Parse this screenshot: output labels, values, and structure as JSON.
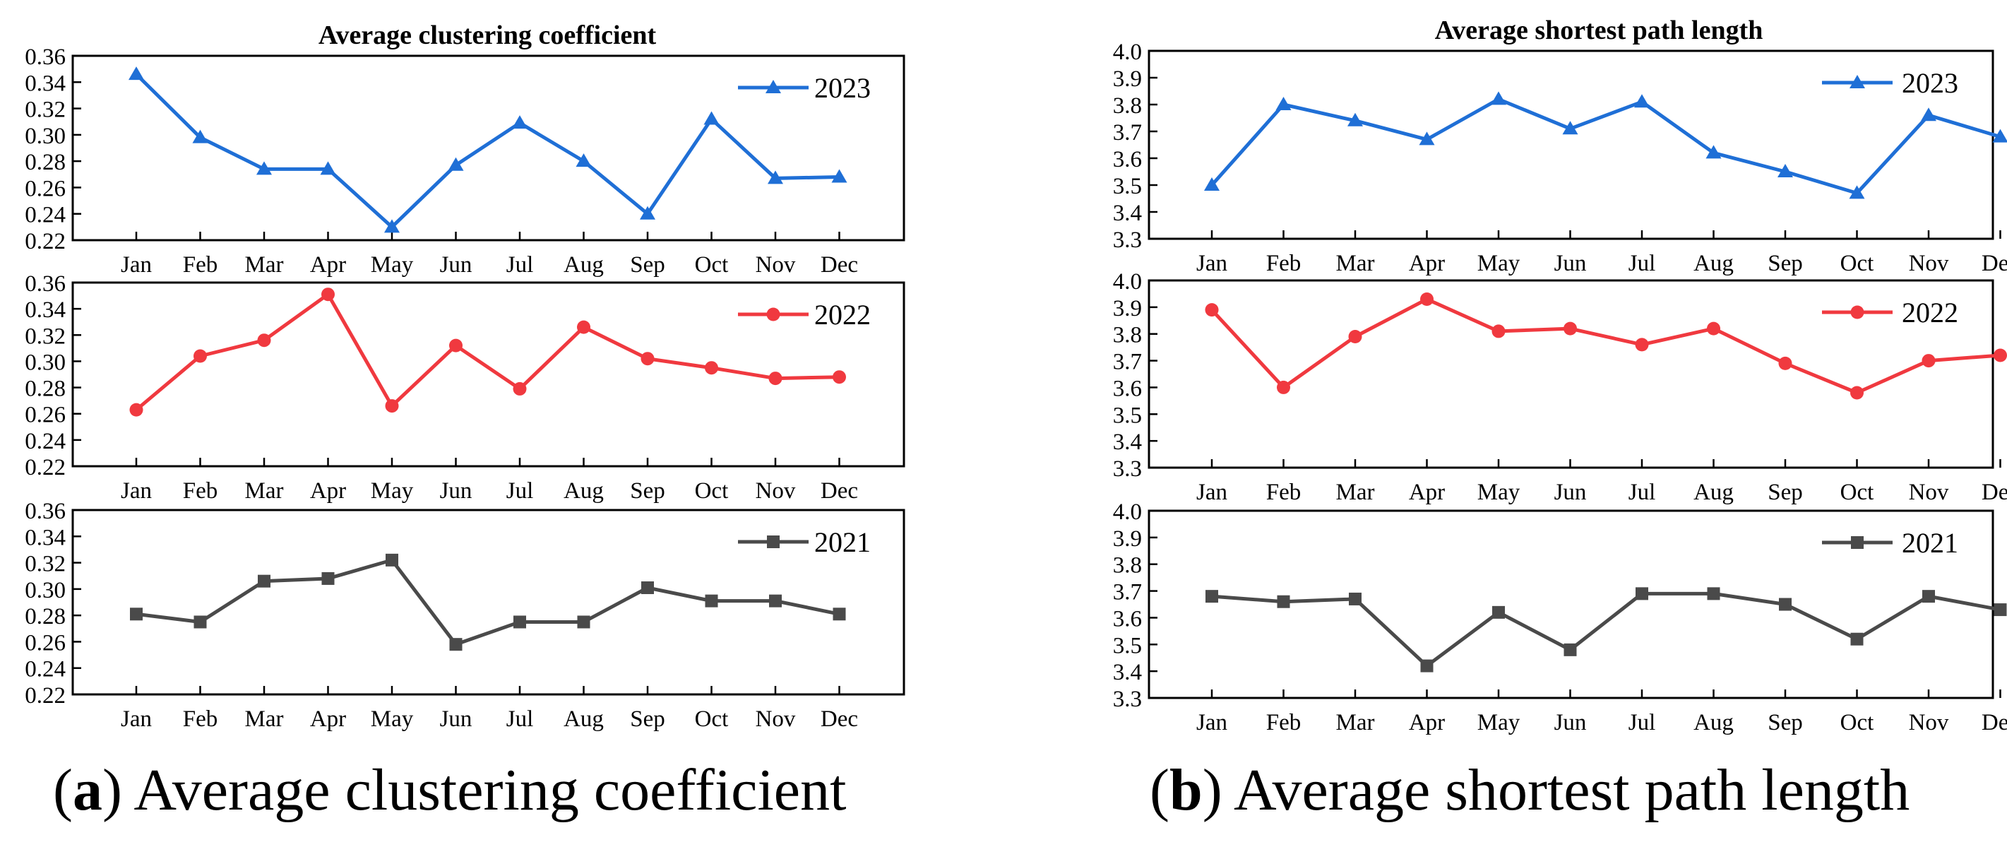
{
  "colors": {
    "2023": "#1f6fd6",
    "2022": "#f0393f",
    "2021": "#4a4a4a"
  },
  "captions": {
    "a": {
      "letter": "a",
      "text": " Average clustering coefficient"
    },
    "b": {
      "letter": "b",
      "text": " Average shortest path length"
    }
  },
  "chart_data": [
    {
      "id": "clustering",
      "type": "line",
      "title": "Average clustering coefficient",
      "categories": [
        "Jan",
        "Feb",
        "Mar",
        "Apr",
        "May",
        "Jun",
        "Jul",
        "Aug",
        "Sep",
        "Oct",
        "Nov",
        "Dec"
      ],
      "ylim": [
        0.22,
        0.36
      ],
      "yticks": [
        "0.22",
        "0.24",
        "0.26",
        "0.28",
        "0.30",
        "0.32",
        "0.34",
        "0.36"
      ],
      "legend_position": "top-right",
      "panels": [
        {
          "name": "2023",
          "marker": "triangle",
          "values": [
            0.346,
            0.298,
            0.274,
            0.274,
            0.23,
            0.277,
            0.309,
            0.28,
            0.24,
            0.312,
            0.267,
            0.268
          ]
        },
        {
          "name": "2022",
          "marker": "circle",
          "values": [
            0.263,
            0.304,
            0.316,
            0.351,
            0.266,
            0.312,
            0.279,
            0.326,
            0.302,
            0.295,
            0.287,
            0.288
          ]
        },
        {
          "name": "2021",
          "marker": "square",
          "values": [
            0.281,
            0.275,
            0.306,
            0.308,
            0.322,
            0.258,
            0.275,
            0.275,
            0.301,
            0.291,
            0.291,
            0.281
          ]
        }
      ]
    },
    {
      "id": "pathlength",
      "type": "line",
      "title": "Average shortest path length",
      "categories": [
        "Jan",
        "Feb",
        "Mar",
        "Apr",
        "May",
        "Jun",
        "Jul",
        "Aug",
        "Sep",
        "Oct",
        "Nov",
        "Dec"
      ],
      "ylim": [
        3.3,
        4.0
      ],
      "yticks": [
        "3.3",
        "3.4",
        "3.5",
        "3.6",
        "3.7",
        "3.8",
        "3.9",
        "4.0"
      ],
      "legend_position": "top-right",
      "panels": [
        {
          "name": "2023",
          "marker": "triangle",
          "values": [
            3.5,
            3.8,
            3.74,
            3.67,
            3.82,
            3.71,
            3.81,
            3.62,
            3.55,
            3.47,
            3.76,
            3.68
          ]
        },
        {
          "name": "2022",
          "marker": "circle",
          "values": [
            3.89,
            3.6,
            3.79,
            3.93,
            3.81,
            3.82,
            3.76,
            3.82,
            3.69,
            3.58,
            3.7,
            3.72
          ]
        },
        {
          "name": "2021",
          "marker": "square",
          "values": [
            3.68,
            3.66,
            3.67,
            3.42,
            3.62,
            3.48,
            3.69,
            3.69,
            3.65,
            3.52,
            3.68,
            3.63
          ]
        }
      ]
    }
  ]
}
